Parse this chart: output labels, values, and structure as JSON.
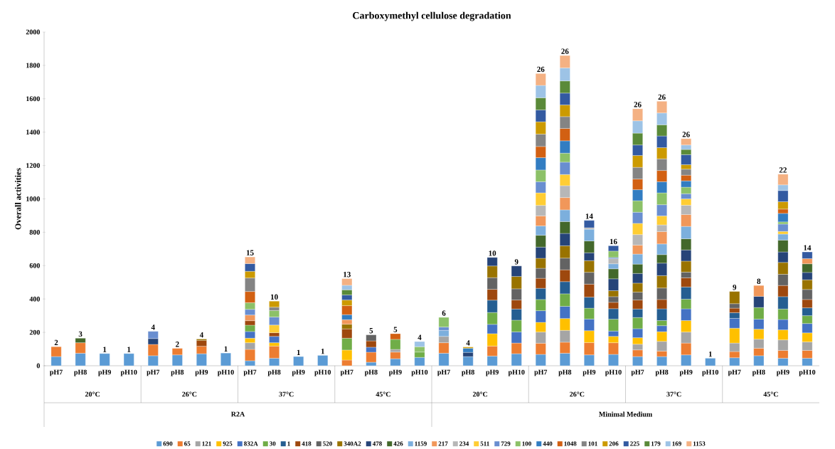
{
  "chart_data": {
    "type": "bar",
    "title": "Carboxymethyl cellulose degradation",
    "ylabel": "Overall activities",
    "categories": [
      "pH7",
      "pH8",
      "pH9",
      "pH10",
      "pH7",
      "pH8",
      "pH9",
      "pH10",
      "pH7",
      "pH8",
      "pH9",
      "pH10",
      "pH7",
      "pH8",
      "pH9",
      "pH10",
      "pH7",
      "pH8",
      "pH9",
      "pH10",
      "pH7",
      "pH8",
      "pH9",
      "pH10",
      "pH7",
      "pH8",
      "pH9",
      "pH10",
      "pH7",
      "pH8",
      "pH9",
      "pH10"
    ],
    "stacked": true,
    "ylim": [
      0,
      2000
    ],
    "yticks": [
      0,
      200,
      400,
      600,
      800,
      1000,
      1200,
      1400,
      1600,
      1800,
      2000
    ],
    "legend": "bottom",
    "annotations": [
      "2",
      "3",
      "1",
      "1",
      "4",
      "2",
      "4",
      "1",
      "15",
      "10",
      "1",
      "1",
      "13",
      "5",
      "5",
      "4",
      "6",
      "4",
      "10",
      "9",
      "26",
      "26",
      "14",
      "16",
      "26",
      "26",
      "26",
      "1",
      "9",
      "8",
      "22",
      "14",
      "20°C",
      "26°C",
      "37°C",
      "45°C",
      "20°C",
      "26°C",
      "37°C",
      "45°C",
      "R2A",
      "Minimal Medium"
    ],
    "series": [
      {
        "name": "690",
        "color": "#5b9bd5",
        "values": [
          55,
          75,
          73,
          73,
          60,
          65,
          72,
          76,
          30,
          45,
          55,
          62,
          null,
          21,
          42,
          50,
          75,
          55,
          58,
          72,
          68,
          75,
          65,
          68,
          55,
          55,
          65,
          45,
          48,
          60,
          45,
          45
        ]
      },
      {
        "name": "65",
        "color": "#ed7d31",
        "values": [
          59,
          63,
          null,
          null,
          68,
          39,
          45,
          null,
          68,
          73,
          null,
          null,
          34,
          60,
          40,
          null,
          63,
          null,
          60,
          64,
          67,
          66,
          74,
          70,
          40,
          33,
          71,
          null,
          37,
          45,
          47,
          47
        ]
      },
      {
        "name": "121",
        "color": "#a5a5a5",
        "values": [
          null,
          null,
          null,
          null,
          null,
          null,
          null,
          null,
          40,
          null,
          null,
          null,
          null,
          null,
          16,
          null,
          38,
          null,
          null,
          null,
          67,
          71,
          null,
          null,
          34,
          58,
          66,
          null,
          51,
          54,
          63,
          51
        ]
      },
      {
        "name": "925",
        "color": "#ffc000",
        "values": [
          null,
          null,
          null,
          null,
          null,
          null,
          null,
          null,
          27,
          20,
          null,
          null,
          60,
          null,
          null,
          null,
          null,
          null,
          74,
          null,
          58,
          71,
          71,
          38,
          39,
          58,
          69,
          null,
          89,
          60,
          60,
          54
        ]
      },
      {
        "name": "832A",
        "color": "#4472c4",
        "values": [
          null,
          null,
          null,
          null,
          null,
          null,
          null,
          null,
          40,
          38,
          null,
          null,
          null,
          30,
          null,
          null,
          null,
          null,
          56,
          67,
          70,
          73,
          70,
          32,
          54,
          36,
          70,
          null,
          59,
          60,
          62,
          56
        ]
      },
      {
        "name": "30",
        "color": "#70ad47",
        "values": [
          null,
          null,
          null,
          null,
          null,
          null,
          null,
          null,
          38,
          null,
          null,
          null,
          71,
          null,
          60,
          32,
          null,
          null,
          71,
          70,
          67,
          75,
          65,
          71,
          67,
          31,
          58,
          null,
          null,
          70,
          63,
          47
        ]
      },
      {
        "name": "1",
        "color": "#255e91",
        "values": [
          null,
          null,
          null,
          null,
          null,
          null,
          null,
          null,
          null,
          null,
          null,
          null,
          null,
          null,
          null,
          null,
          null,
          null,
          74,
          67,
          67,
          73,
          66,
          63,
          51,
          70,
          73,
          null,
          34,
          null,
          74,
          47
        ]
      },
      {
        "name": "418",
        "color": "#9e480e",
        "values": [
          null,
          null,
          null,
          null,
          null,
          null,
          35,
          null,
          27,
          22,
          null,
          null,
          56,
          38,
          null,
          null,
          null,
          null,
          65,
          54,
          60,
          71,
          78,
          38,
          54,
          56,
          55,
          null,
          27,
          null,
          67,
          50
        ]
      },
      {
        "name": "520",
        "color": "#636363",
        "values": [
          null,
          null,
          null,
          null,
          null,
          null,
          null,
          null,
          null,
          null,
          null,
          null,
          null,
          36,
          null,
          null,
          null,
          null,
          70,
          67,
          60,
          70,
          71,
          34,
          47,
          69,
          34,
          null,
          27,
          null,
          67,
          60
        ]
      },
      {
        "name": "340A2",
        "color": "#997300",
        "values": [
          null,
          null,
          null,
          null,
          null,
          null,
          8,
          null,
          null,
          null,
          null,
          null,
          28,
          null,
          null,
          null,
          null,
          null,
          70,
          74,
          60,
          74,
          70,
          36,
          54,
          74,
          66,
          null,
          73,
          null,
          71,
          58
        ]
      },
      {
        "name": "478",
        "color": "#264478",
        "values": [
          null,
          null,
          null,
          null,
          35,
          null,
          null,
          null,
          null,
          null,
          null,
          null,
          null,
          null,
          null,
          null,
          null,
          25,
          51,
          63,
          67,
          74,
          47,
          71,
          58,
          75,
          67,
          null,
          null,
          67,
          63,
          44
        ]
      },
      {
        "name": "426",
        "color": "#43682b",
        "values": [
          null,
          27,
          null,
          null,
          null,
          null,
          null,
          null,
          null,
          null,
          null,
          null,
          null,
          null,
          null,
          null,
          null,
          null,
          null,
          null,
          71,
          71,
          71,
          60,
          56,
          51,
          67,
          null,
          null,
          null,
          71,
          52
        ]
      },
      {
        "name": "1159",
        "color": "#7cafdd",
        "values": [
          null,
          null,
          null,
          null,
          null,
          null,
          null,
          null,
          null,
          null,
          null,
          null,
          null,
          null,
          null,
          null,
          36,
          null,
          null,
          null,
          56,
          70,
          70,
          30,
          60,
          64,
          74,
          null,
          null,
          null,
          36,
          null
        ]
      },
      {
        "name": "217",
        "color": "#f1975a",
        "values": [
          null,
          null,
          null,
          null,
          null,
          null,
          null,
          null,
          34,
          null,
          null,
          null,
          27,
          null,
          null,
          null,
          null,
          null,
          null,
          null,
          60,
          74,
          null,
          null,
          54,
          74,
          71,
          null,
          null,
          65,
          null,
          31
        ]
      },
      {
        "name": "234",
        "color": "#b7b7b7",
        "values": [
          null,
          null,
          null,
          null,
          null,
          null,
          null,
          null,
          null,
          null,
          null,
          null,
          null,
          null,
          null,
          null,
          null,
          null,
          null,
          null,
          63,
          71,
          9,
          31,
          63,
          40,
          56,
          null,
          null,
          null,
          null,
          null
        ]
      },
      {
        "name": "511",
        "color": "#ffcd33",
        "values": [
          null,
          null,
          null,
          null,
          null,
          null,
          null,
          null,
          null,
          46,
          null,
          null,
          null,
          null,
          null,
          null,
          null,
          null,
          null,
          null,
          75,
          67,
          null,
          null,
          67,
          54,
          38,
          null,
          null,
          null,
          16,
          null
        ]
      },
      {
        "name": "729",
        "color": "#698ed0",
        "values": [
          null,
          null,
          null,
          null,
          43,
          null,
          null,
          null,
          34,
          48,
          null,
          null,
          null,
          null,
          null,
          null,
          20,
          null,
          null,
          null,
          67,
          74,
          null,
          7,
          67,
          67,
          31,
          null,
          null,
          null,
          44,
          null
        ]
      },
      {
        "name": "100",
        "color": "#8cc168",
        "values": [
          null,
          null,
          null,
          null,
          null,
          null,
          null,
          null,
          40,
          39,
          null,
          null,
          null,
          null,
          null,
          32,
          58,
          null,
          null,
          null,
          70,
          54,
          null,
          38,
          69,
          71,
          39,
          null,
          null,
          null,
          13,
          null
        ]
      },
      {
        "name": "440",
        "color": "#327dc2",
        "values": [
          null,
          null,
          null,
          null,
          null,
          null,
          null,
          null,
          null,
          null,
          null,
          null,
          30,
          null,
          null,
          null,
          null,
          25,
          null,
          null,
          74,
          74,
          null,
          null,
          66,
          67,
          38,
          null,
          null,
          null,
          51,
          null
        ]
      },
      {
        "name": "1048",
        "color": "#d26012",
        "values": [
          null,
          null,
          null,
          null,
          null,
          null,
          null,
          null,
          67,
          null,
          null,
          null,
          54,
          null,
          34,
          null,
          null,
          null,
          null,
          null,
          67,
          74,
          null,
          null,
          64,
          67,
          34,
          null,
          null,
          null,
          26,
          null
        ]
      },
      {
        "name": "101",
        "color": "#848484",
        "values": [
          null,
          null,
          null,
          null,
          null,
          null,
          null,
          null,
          81,
          20,
          null,
          null,
          null,
          null,
          null,
          null,
          null,
          null,
          null,
          null,
          74,
          71,
          null,
          null,
          70,
          70,
          36,
          null,
          null,
          null,
          null,
          null
        ]
      },
      {
        "name": "206",
        "color": "#cc9a00",
        "values": [
          null,
          null,
          null,
          null,
          null,
          null,
          null,
          null,
          40,
          36,
          null,
          null,
          34,
          null,
          null,
          null,
          null,
          7,
          null,
          null,
          74,
          70,
          null,
          null,
          71,
          67,
          27,
          null,
          null,
          null,
          44,
          null
        ]
      },
      {
        "name": "225",
        "color": "#335aa1",
        "values": [
          null,
          null,
          null,
          null,
          null,
          null,
          null,
          null,
          46,
          null,
          null,
          null,
          30,
          null,
          null,
          null,
          null,
          null,
          null,
          null,
          71,
          71,
          44,
          32,
          63,
          70,
          60,
          null,
          null,
          null,
          67,
          40
        ]
      },
      {
        "name": "179",
        "color": "#5a8a39",
        "values": [
          null,
          null,
          null,
          null,
          null,
          null,
          null,
          null,
          null,
          null,
          null,
          null,
          31,
          null,
          null,
          null,
          null,
          null,
          null,
          null,
          73,
          73,
          null,
          null,
          71,
          67,
          31,
          null,
          null,
          null,
          null,
          null
        ]
      },
      {
        "name": "169",
        "color": "#9dc3e6",
        "values": [
          null,
          null,
          null,
          null,
          null,
          null,
          null,
          null,
          null,
          null,
          null,
          null,
          27,
          null,
          null,
          31,
          null,
          null,
          null,
          null,
          74,
          78,
          null,
          null,
          74,
          71,
          27,
          null,
          null,
          null,
          34,
          null
        ]
      },
      {
        "name": "1153",
        "color": "#f4b183",
        "values": [
          null,
          null,
          null,
          null,
          null,
          null,
          null,
          null,
          40,
          null,
          null,
          null,
          40,
          null,
          null,
          null,
          null,
          null,
          null,
          null,
          71,
          74,
          null,
          null,
          72,
          70,
          38,
          null,
          null,
          null,
          64,
          null
        ]
      }
    ]
  }
}
